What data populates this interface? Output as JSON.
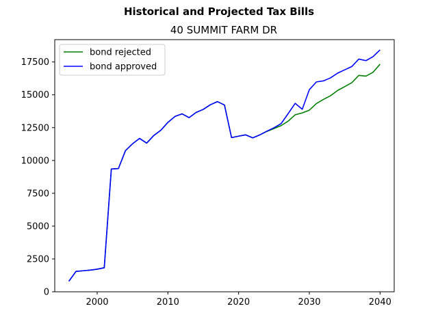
{
  "chart_data": {
    "type": "line",
    "title": "Historical and Projected Tax Bills",
    "subtitle": "40 SUMMIT FARM DR",
    "xlabel": "",
    "ylabel": "",
    "xlim": [
      1994,
      2042
    ],
    "ylim": [
      0,
      19200
    ],
    "xticks": [
      2000,
      2010,
      2020,
      2030,
      2040
    ],
    "yticks": [
      0,
      2500,
      5000,
      7500,
      10000,
      12500,
      15000,
      17500
    ],
    "grid": false,
    "legend_position": "top-left",
    "series": [
      {
        "name": "bond rejected",
        "color": "#008000",
        "x": [
          1996,
          1997,
          1998,
          1999,
          2000,
          2001,
          2002,
          2003,
          2004,
          2005,
          2006,
          2007,
          2008,
          2009,
          2010,
          2011,
          2012,
          2013,
          2014,
          2015,
          2016,
          2017,
          2018,
          2019,
          2020,
          2021,
          2022,
          2023,
          2024,
          2025,
          2026,
          2027,
          2028,
          2029,
          2030,
          2031,
          2032,
          2033,
          2034,
          2035,
          2036,
          2037,
          2038,
          2039,
          2040
        ],
        "values": [
          800,
          1550,
          1600,
          1650,
          1720,
          1830,
          9350,
          9380,
          10750,
          11270,
          11680,
          11320,
          11900,
          12300,
          12900,
          13350,
          13550,
          13260,
          13660,
          13890,
          14240,
          14480,
          14220,
          11740,
          11850,
          11950,
          11720,
          11950,
          12210,
          12430,
          12650,
          12990,
          13480,
          13620,
          13830,
          14330,
          14650,
          14930,
          15330,
          15620,
          15920,
          16480,
          16420,
          16710,
          17330
        ]
      },
      {
        "name": "bond approved",
        "color": "#0000ff",
        "x": [
          1996,
          1997,
          1998,
          1999,
          2000,
          2001,
          2002,
          2003,
          2004,
          2005,
          2006,
          2007,
          2008,
          2009,
          2010,
          2011,
          2012,
          2013,
          2014,
          2015,
          2016,
          2017,
          2018,
          2019,
          2020,
          2021,
          2022,
          2023,
          2024,
          2025,
          2026,
          2027,
          2028,
          2029,
          2030,
          2031,
          2032,
          2033,
          2034,
          2035,
          2036,
          2037,
          2038,
          2039,
          2040
        ],
        "values": [
          800,
          1550,
          1600,
          1650,
          1720,
          1830,
          9350,
          9380,
          10750,
          11270,
          11680,
          11320,
          11900,
          12300,
          12900,
          13350,
          13550,
          13260,
          13660,
          13890,
          14240,
          14480,
          14220,
          11740,
          11850,
          11950,
          11720,
          11950,
          12230,
          12490,
          12800,
          13560,
          14350,
          13900,
          15390,
          15980,
          16060,
          16290,
          16650,
          16900,
          17150,
          17720,
          17600,
          17900,
          18420
        ]
      }
    ]
  }
}
